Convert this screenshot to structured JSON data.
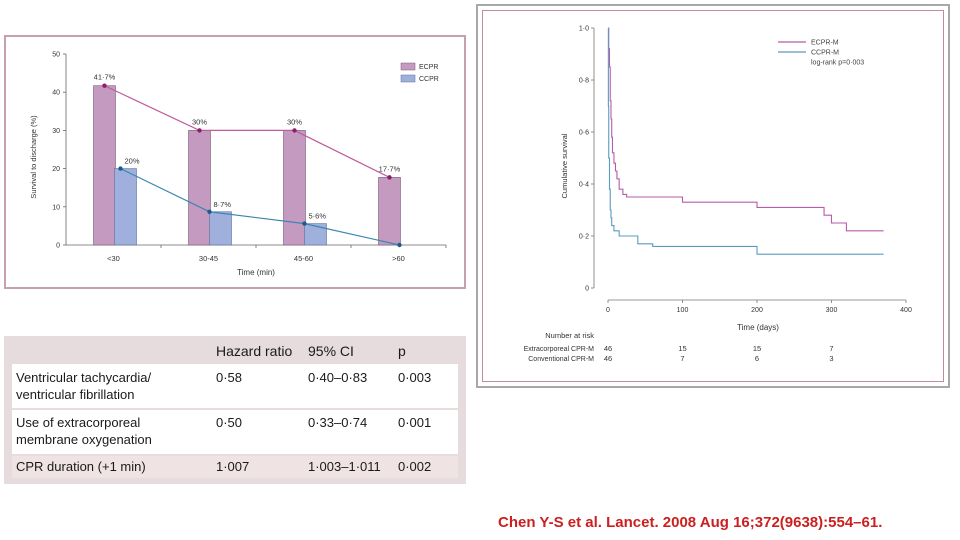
{
  "chart_data": [
    {
      "type": "bar",
      "ylabel": "Survival to discharge (%)",
      "xlabel": "Time (min)",
      "ylim": [
        0,
        50
      ],
      "yticks": [
        "0",
        "10",
        "20",
        "30",
        "40",
        "50"
      ],
      "categories": [
        "<30",
        "30-45",
        "45-60",
        ">60"
      ],
      "series": [
        {
          "name": "ECPR",
          "values": [
            41.7,
            30,
            30,
            17.7
          ],
          "labels": [
            "41·7%",
            "30%",
            "30%",
            "17·7%"
          ],
          "color": "#c49ac0"
        },
        {
          "name": "CCPR",
          "values": [
            20,
            8.7,
            5.6,
            0
          ],
          "labels": [
            "20%",
            "8·7%",
            "5·6%",
            ""
          ],
          "color": "#9fb0dc"
        }
      ],
      "line_colors": {
        "ECPR": "#c05c9e",
        "CCPR": "#3a86b0"
      },
      "legend": [
        "ECPR",
        "CCPR"
      ]
    },
    {
      "type": "line",
      "title": "",
      "xlabel": "Time (days)",
      "ylabel": "Cumulative survival",
      "xlim": [
        0,
        400
      ],
      "ylim": [
        0,
        1.0
      ],
      "xticks": [
        "0",
        "100",
        "200",
        "300",
        "400"
      ],
      "yticks": [
        "0",
        "0·2",
        "0·4",
        "0·6",
        "0·8",
        "1·0"
      ],
      "legend": [
        "ECPR-M",
        "CCPR-M",
        "log-rank p=0·003"
      ],
      "series": [
        {
          "name": "ECPR-M",
          "color": "#b85ba8",
          "x": [
            0,
            1,
            2,
            3,
            4,
            5,
            6,
            8,
            10,
            12,
            15,
            20,
            25,
            30,
            100,
            200,
            290,
            300,
            320,
            370
          ],
          "y": [
            1.0,
            0.92,
            0.85,
            0.72,
            0.65,
            0.58,
            0.52,
            0.48,
            0.45,
            0.42,
            0.38,
            0.36,
            0.35,
            0.35,
            0.33,
            0.31,
            0.28,
            0.25,
            0.22,
            0.22
          ]
        },
        {
          "name": "CCPR-M",
          "color": "#5b9bc0",
          "x": [
            0,
            0.5,
            1,
            2,
            3,
            4,
            5,
            8,
            10,
            15,
            20,
            40,
            60,
            200,
            370
          ],
          "y": [
            1.0,
            0.7,
            0.5,
            0.38,
            0.3,
            0.27,
            0.24,
            0.22,
            0.22,
            0.2,
            0.2,
            0.17,
            0.16,
            0.13,
            0.13
          ]
        }
      ],
      "at_risk": {
        "label": "Number at risk",
        "rows": [
          {
            "name": "Extracorporeal CPR-M",
            "values": [
              "46",
              "15",
              "15",
              "7"
            ]
          },
          {
            "name": "Conventional CPR-M",
            "values": [
              "46",
              "7",
              "6",
              "3"
            ]
          }
        ]
      }
    }
  ],
  "table": {
    "headers": [
      "Hazard ratio",
      "95% CI",
      "p"
    ],
    "rows": [
      {
        "label_line1": "Ventricular tachycardia/",
        "label_line2": "ventricular fibrillation",
        "hr": "0·58",
        "ci": "0·40–0·83",
        "p": "0·003"
      },
      {
        "label_line1": "Use of extracorporeal",
        "label_line2": "membrane oxygenation",
        "hr": "0·50",
        "ci": "0·33–0·74",
        "p": "0·001"
      },
      {
        "label_line1": "CPR duration (+1 min)",
        "label_line2": "",
        "hr": "1·007",
        "ci": "1·003–1·011",
        "p": "0·002"
      }
    ]
  },
  "citation": "Chen Y-S et al. Lancet. 2008 Aug 16;372(9638):554–61."
}
